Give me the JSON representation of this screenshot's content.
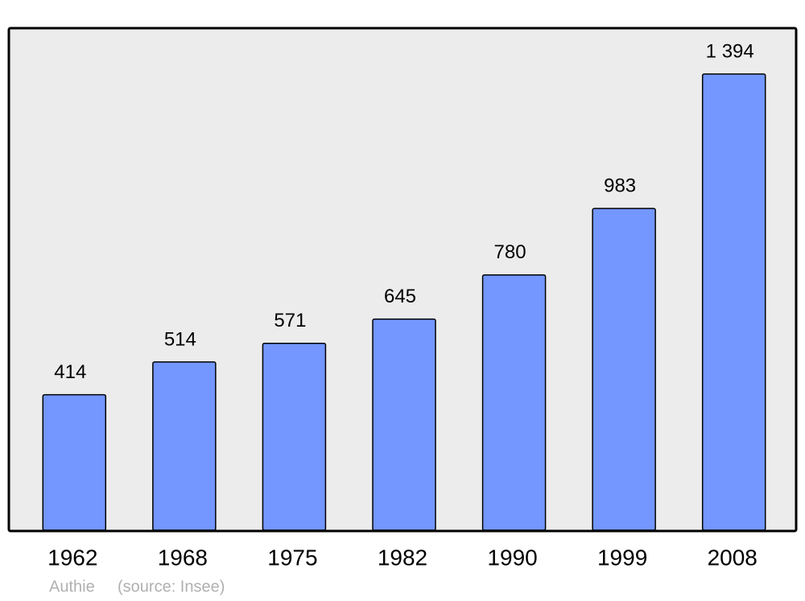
{
  "chart_data": {
    "type": "bar",
    "categories": [
      "1962",
      "1968",
      "1975",
      "1982",
      "1990",
      "1999",
      "2008"
    ],
    "values": [
      414,
      514,
      571,
      645,
      780,
      983,
      1394
    ],
    "value_labels": [
      "414",
      "514",
      "571",
      "645",
      "780",
      "983",
      "1 394"
    ],
    "color": "#7397ff",
    "place": "Authie",
    "source": "(source: Insee)"
  }
}
